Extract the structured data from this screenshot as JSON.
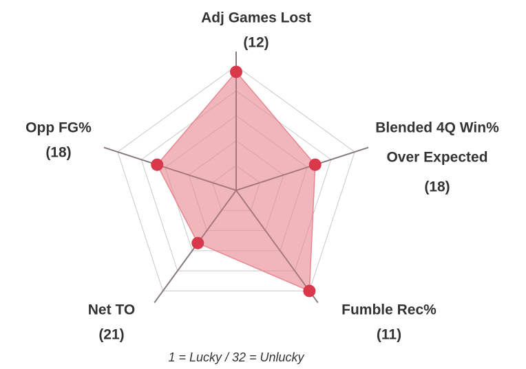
{
  "chart_data": {
    "type": "radar",
    "categories": [
      [
        "Adj Games Lost"
      ],
      [
        "Blended 4Q Win%",
        "Over Expected"
      ],
      [
        "Fumble Rec%"
      ],
      [
        "Net TO"
      ],
      [
        "Opp FG%"
      ]
    ],
    "values": [
      12,
      18,
      11,
      21,
      18
    ],
    "value_labels": [
      "(12)",
      "(18)",
      "(11)",
      "(21)",
      "(18)"
    ],
    "rlim": [
      32,
      11
    ],
    "rticks": [
      27.8,
      23.6,
      19.4,
      15.2,
      11
    ],
    "grid": true,
    "color": "#d9374a",
    "fill_color": "#e8868f",
    "note": "1 = Lucky / 32 = Unlucky"
  }
}
